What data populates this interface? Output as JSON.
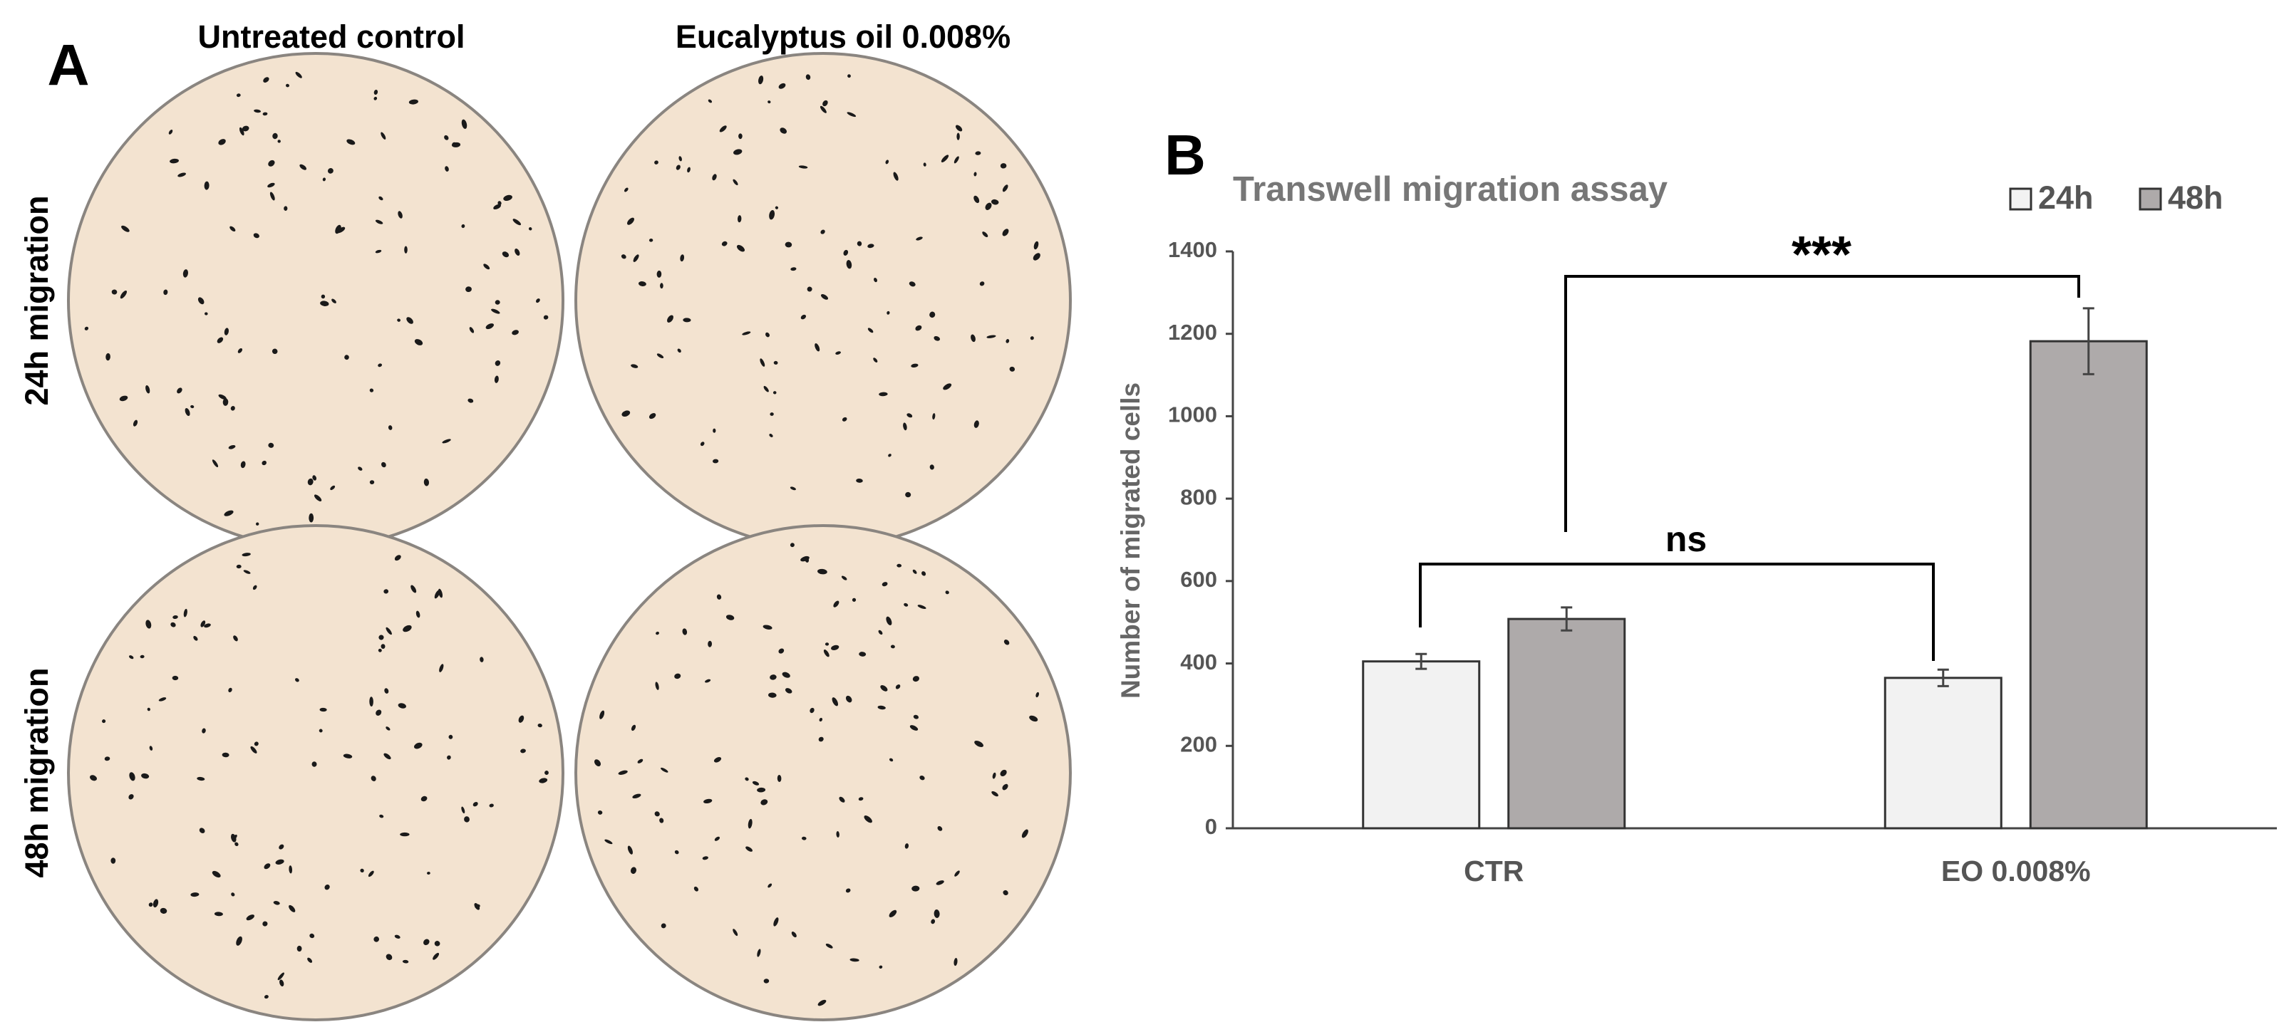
{
  "panel_a": {
    "label": "A",
    "columns": [
      "Untreated control",
      "Eucalyptus oil 0.008%"
    ],
    "rows": [
      "24h migration",
      "48h migration"
    ]
  },
  "chart_data": {
    "type": "bar",
    "label": "B",
    "title": "Transwell migration assay",
    "y_label": "Number of migrated cells",
    "categories": [
      "CTR",
      "EO 0.008%"
    ],
    "series": [
      {
        "name": "24h",
        "color": "#f2f2f2",
        "values": [
          405,
          365
        ],
        "errors": [
          18,
          20
        ]
      },
      {
        "name": "48h",
        "color": "#aeaaaa",
        "values": [
          508,
          1182
        ],
        "errors": [
          28,
          80
        ]
      }
    ],
    "ylim": [
      0,
      1400
    ],
    "yticks": [
      0,
      200,
      400,
      600,
      800,
      1000,
      1200,
      1400
    ],
    "grid": false,
    "legend": "top-right",
    "annotations": [
      "ns",
      "***"
    ]
  }
}
